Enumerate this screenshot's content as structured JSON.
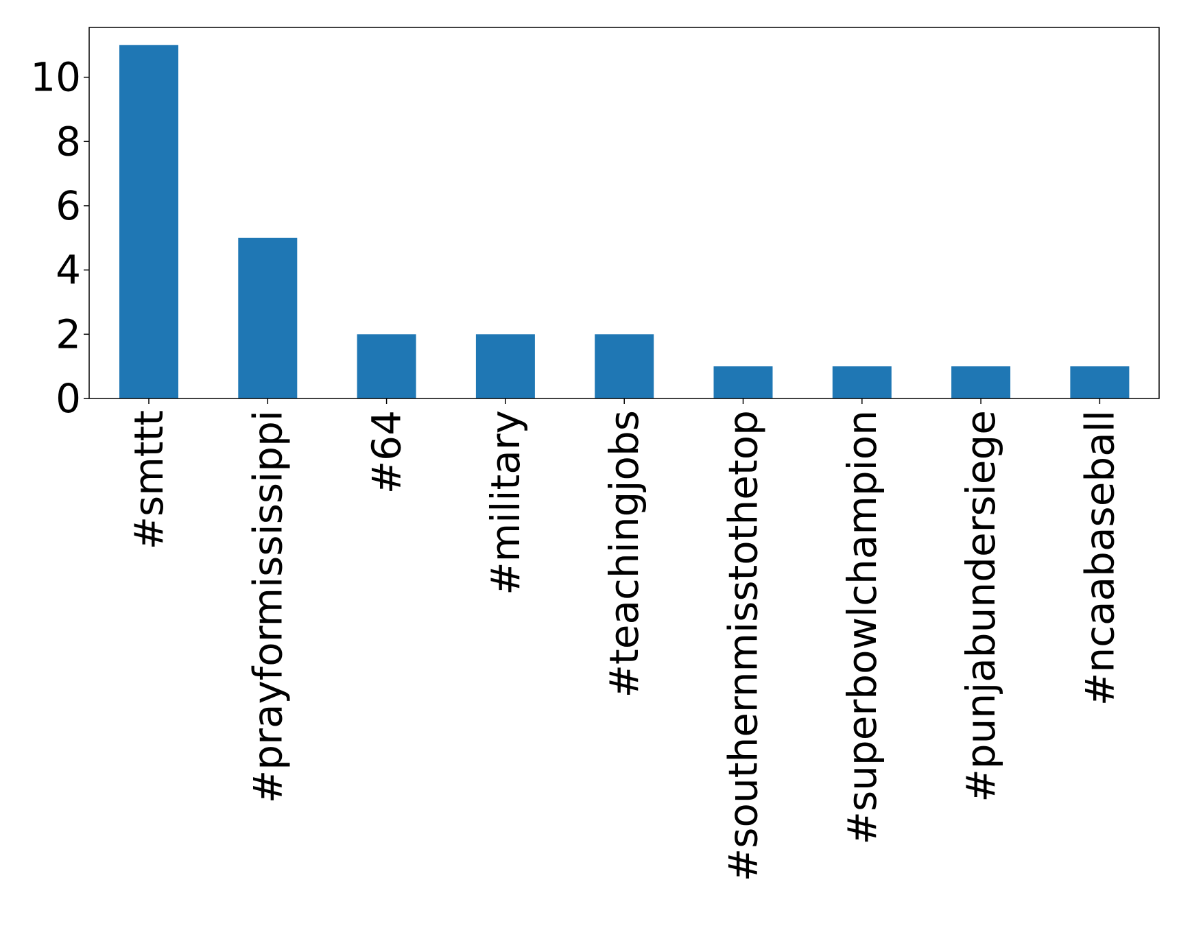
{
  "chart_data": {
    "type": "bar",
    "title": "",
    "xlabel": "",
    "ylabel": "",
    "categories": [
      "#smttt",
      "#prayformississippi",
      "#64",
      "#military",
      "#teachingjobs",
      "#southernmisstothetop",
      "#superbowlchampion",
      "#punjabundersiege",
      "#ncaabaseball"
    ],
    "values": [
      11,
      5,
      2,
      2,
      2,
      1,
      1,
      1,
      1
    ],
    "ylim": [
      0,
      11.55
    ],
    "yticks": [
      0,
      2,
      4,
      6,
      8,
      10
    ],
    "grid": false,
    "legend": false,
    "colors": {
      "bar": "#1f77b4",
      "axis": "#000000",
      "background": "#ffffff"
    }
  }
}
